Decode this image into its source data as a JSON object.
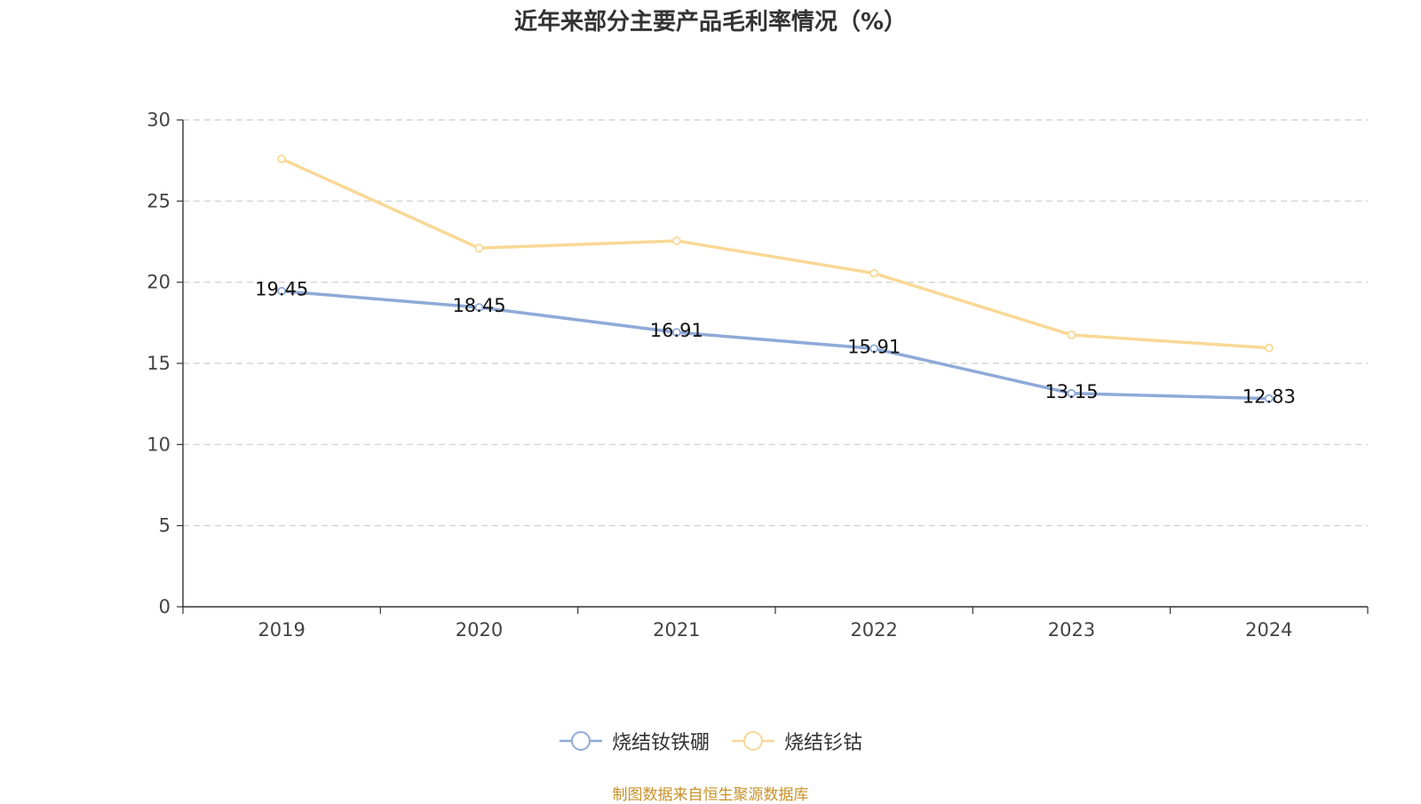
{
  "chart_data": {
    "type": "line",
    "title": "近年来部分主要产品毛利率情况（%）",
    "categories": [
      "2019",
      "2020",
      "2021",
      "2022",
      "2023",
      "2024"
    ],
    "series": [
      {
        "name": "烧结钕铁硼",
        "color": "#8eaad8",
        "values": [
          19.45,
          18.45,
          16.91,
          15.91,
          13.15,
          12.83
        ],
        "show_labels": true
      },
      {
        "name": "烧结钐钴",
        "color": "#f9d896",
        "values": [
          27.6,
          22.1,
          22.55,
          20.55,
          16.75,
          15.95
        ],
        "show_labels": false
      }
    ],
    "ylim": [
      0,
      30
    ],
    "yticks": [
      0,
      5,
      10,
      15,
      20,
      25,
      30
    ],
    "grid": true,
    "legend": "bottom-center"
  },
  "source": "制图数据来自恒生聚源数据库"
}
